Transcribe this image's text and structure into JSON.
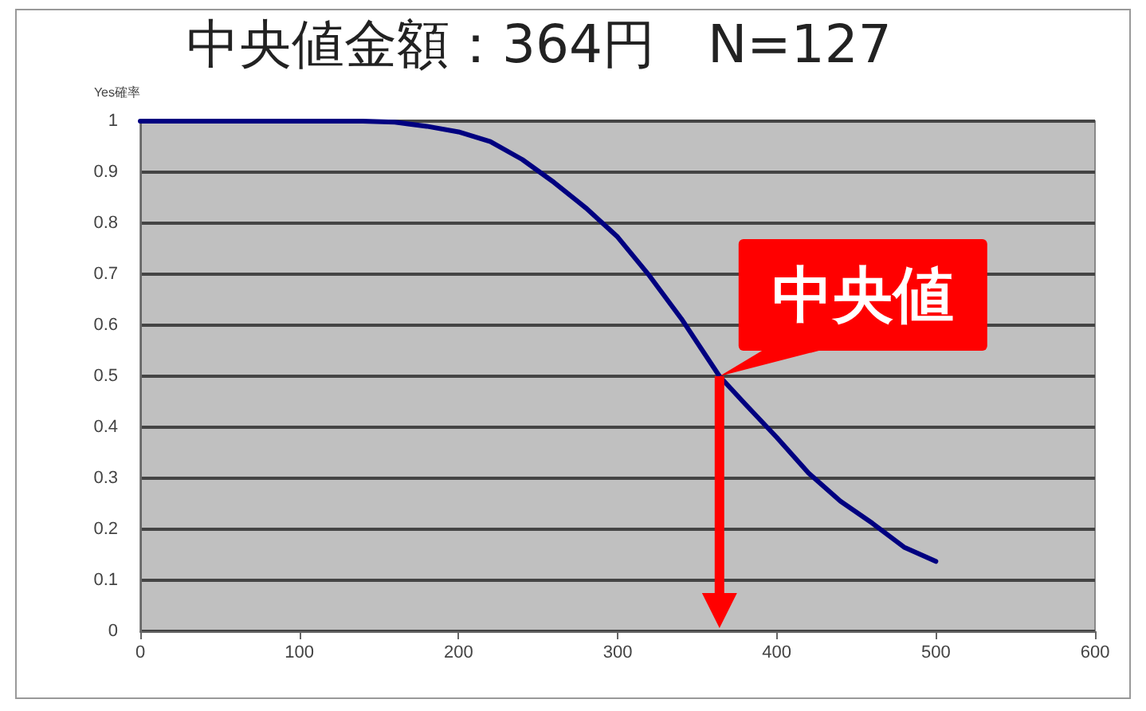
{
  "chart_data": {
    "type": "line",
    "title": "中央値金額：364円　N=127",
    "ylabel": "Yes確率",
    "x": [
      0,
      50,
      100,
      140,
      160,
      180,
      200,
      220,
      240,
      260,
      280,
      300,
      320,
      340,
      364,
      380,
      400,
      420,
      440,
      460,
      480,
      500
    ],
    "series": [
      {
        "color": "#000080",
        "values": [
          1,
          1,
          1,
          1,
          0.998,
          0.99,
          0.979,
          0.96,
          0.925,
          0.88,
          0.83,
          0.773,
          0.697,
          0.613,
          0.5,
          0.446,
          0.38,
          0.31,
          0.255,
          0.212,
          0.165,
          0.137
        ]
      }
    ],
    "xlim": [
      0,
      600
    ],
    "xticks": [
      0,
      100,
      200,
      300,
      400,
      500,
      600
    ],
    "ylim": [
      0,
      1
    ],
    "yticks": [
      0,
      0.1,
      0.2,
      0.3,
      0.4,
      0.5,
      0.6,
      0.7,
      0.8,
      0.9,
      1
    ],
    "grid": "y",
    "marker": "none",
    "line_style": "solid",
    "annotations": [
      {
        "text": "中央値",
        "x": 364,
        "y": 0.5
      }
    ]
  }
}
